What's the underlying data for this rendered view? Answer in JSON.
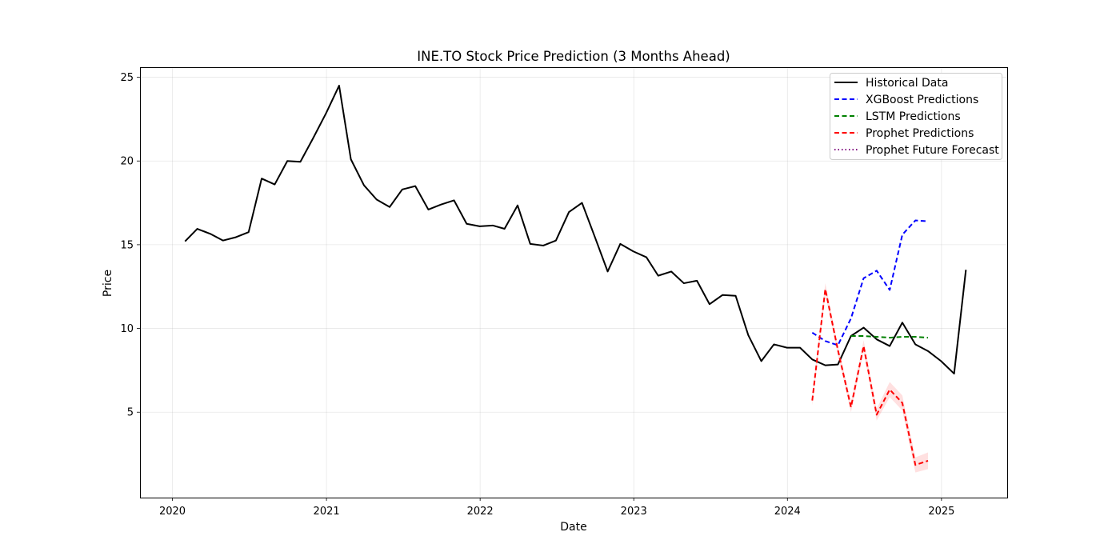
{
  "chart_data": {
    "type": "line",
    "title": "INE.TO Stock Price Prediction (3 Months Ahead)",
    "xlabel": "Date",
    "ylabel": "Price",
    "x_range": [
      "2019-10-16",
      "2025-06-08"
    ],
    "ylim": [
      -0.1,
      25.6
    ],
    "x_ticks": [
      {
        "date": "2020-01-01",
        "label": "2020"
      },
      {
        "date": "2021-01-01",
        "label": "2021"
      },
      {
        "date": "2022-01-01",
        "label": "2022"
      },
      {
        "date": "2023-01-01",
        "label": "2023"
      },
      {
        "date": "2024-01-01",
        "label": "2024"
      },
      {
        "date": "2025-01-01",
        "label": "2025"
      }
    ],
    "y_ticks": [
      5,
      10,
      15,
      20,
      25
    ],
    "grid": true,
    "legend_position": "top-right",
    "series": [
      {
        "name": "Historical Data",
        "color": "#000000",
        "dash": "solid",
        "points": [
          [
            "2020-01-31",
            15.2
          ],
          [
            "2020-02-29",
            15.95
          ],
          [
            "2020-03-31",
            15.65
          ],
          [
            "2020-04-30",
            15.25
          ],
          [
            "2020-05-31",
            15.45
          ],
          [
            "2020-06-30",
            15.75
          ],
          [
            "2020-07-31",
            18.95
          ],
          [
            "2020-08-31",
            18.6
          ],
          [
            "2020-09-30",
            20.0
          ],
          [
            "2020-10-31",
            19.95
          ],
          [
            "2020-11-30",
            21.35
          ],
          [
            "2020-12-31",
            22.85
          ],
          [
            "2021-01-31",
            24.5
          ],
          [
            "2021-02-28",
            20.1
          ],
          [
            "2021-03-31",
            18.55
          ],
          [
            "2021-04-30",
            17.7
          ],
          [
            "2021-05-31",
            17.25
          ],
          [
            "2021-06-30",
            18.3
          ],
          [
            "2021-07-31",
            18.5
          ],
          [
            "2021-08-31",
            17.1
          ],
          [
            "2021-09-30",
            17.4
          ],
          [
            "2021-10-31",
            17.65
          ],
          [
            "2021-11-30",
            16.25
          ],
          [
            "2021-12-31",
            16.1
          ],
          [
            "2022-01-31",
            16.15
          ],
          [
            "2022-02-28",
            15.95
          ],
          [
            "2022-03-31",
            17.35
          ],
          [
            "2022-04-30",
            15.05
          ],
          [
            "2022-05-31",
            14.95
          ],
          [
            "2022-06-30",
            15.25
          ],
          [
            "2022-07-31",
            16.95
          ],
          [
            "2022-08-31",
            17.5
          ],
          [
            "2022-09-30",
            15.5
          ],
          [
            "2022-10-31",
            13.4
          ],
          [
            "2022-11-30",
            15.05
          ],
          [
            "2022-12-31",
            14.6
          ],
          [
            "2023-01-31",
            14.25
          ],
          [
            "2023-02-28",
            13.15
          ],
          [
            "2023-03-31",
            13.4
          ],
          [
            "2023-04-30",
            12.7
          ],
          [
            "2023-05-31",
            12.85
          ],
          [
            "2023-06-30",
            11.45
          ],
          [
            "2023-07-31",
            12.0
          ],
          [
            "2023-08-31",
            11.95
          ],
          [
            "2023-09-30",
            9.6
          ],
          [
            "2023-10-31",
            8.05
          ],
          [
            "2023-11-30",
            9.05
          ],
          [
            "2023-12-31",
            8.85
          ],
          [
            "2024-01-31",
            8.85
          ],
          [
            "2024-02-29",
            8.15
          ],
          [
            "2024-03-31",
            7.8
          ],
          [
            "2024-04-30",
            7.85
          ],
          [
            "2024-05-31",
            9.55
          ],
          [
            "2024-06-30",
            10.05
          ],
          [
            "2024-07-31",
            9.35
          ],
          [
            "2024-08-31",
            8.95
          ],
          [
            "2024-09-30",
            10.35
          ],
          [
            "2024-10-31",
            9.05
          ],
          [
            "2024-11-30",
            8.65
          ],
          [
            "2024-12-31",
            8.05
          ],
          [
            "2025-01-31",
            7.3
          ],
          [
            "2025-02-28",
            13.5
          ]
        ]
      },
      {
        "name": "XGBoost Predictions",
        "color": "#0000ff",
        "dash": "dashed",
        "points": [
          [
            "2024-02-29",
            9.75
          ],
          [
            "2024-03-31",
            9.25
          ],
          [
            "2024-04-30",
            9.0
          ],
          [
            "2024-05-31",
            10.6
          ],
          [
            "2024-06-30",
            13.0
          ],
          [
            "2024-07-31",
            13.45
          ],
          [
            "2024-08-31",
            12.3
          ],
          [
            "2024-09-30",
            15.6
          ],
          [
            "2024-10-31",
            16.45
          ],
          [
            "2024-11-30",
            16.4
          ]
        ]
      },
      {
        "name": "LSTM Predictions",
        "color": "#008000",
        "dash": "dashed",
        "points": [
          [
            "2024-05-31",
            9.55
          ],
          [
            "2024-06-30",
            9.55
          ],
          [
            "2024-07-31",
            9.5
          ],
          [
            "2024-08-31",
            9.45
          ],
          [
            "2024-09-30",
            9.5
          ],
          [
            "2024-10-31",
            9.5
          ],
          [
            "2024-11-30",
            9.45
          ]
        ]
      },
      {
        "name": "Prophet Predictions",
        "color": "#ff0000",
        "dash": "dashed",
        "points": [
          [
            "2024-02-29",
            5.7
          ],
          [
            "2024-03-31",
            12.35
          ],
          [
            "2024-04-30",
            8.7
          ],
          [
            "2024-05-31",
            5.3
          ],
          [
            "2024-06-30",
            8.95
          ],
          [
            "2024-07-31",
            4.85
          ],
          [
            "2024-08-31",
            6.35
          ],
          [
            "2024-09-30",
            5.55
          ],
          [
            "2024-10-31",
            1.85
          ],
          [
            "2024-11-30",
            2.1
          ]
        ],
        "band": [
          [
            5.4,
            6.0
          ],
          [
            12.0,
            12.7
          ],
          [
            8.4,
            9.0
          ],
          [
            5.0,
            5.6
          ],
          [
            8.6,
            9.3
          ],
          [
            4.5,
            5.2
          ],
          [
            5.9,
            6.8
          ],
          [
            5.1,
            6.0
          ],
          [
            1.4,
            2.3
          ],
          [
            1.6,
            2.6
          ]
        ]
      },
      {
        "name": "Prophet Future Forecast",
        "color": "#800080",
        "dash": "dotted",
        "points": []
      }
    ]
  }
}
